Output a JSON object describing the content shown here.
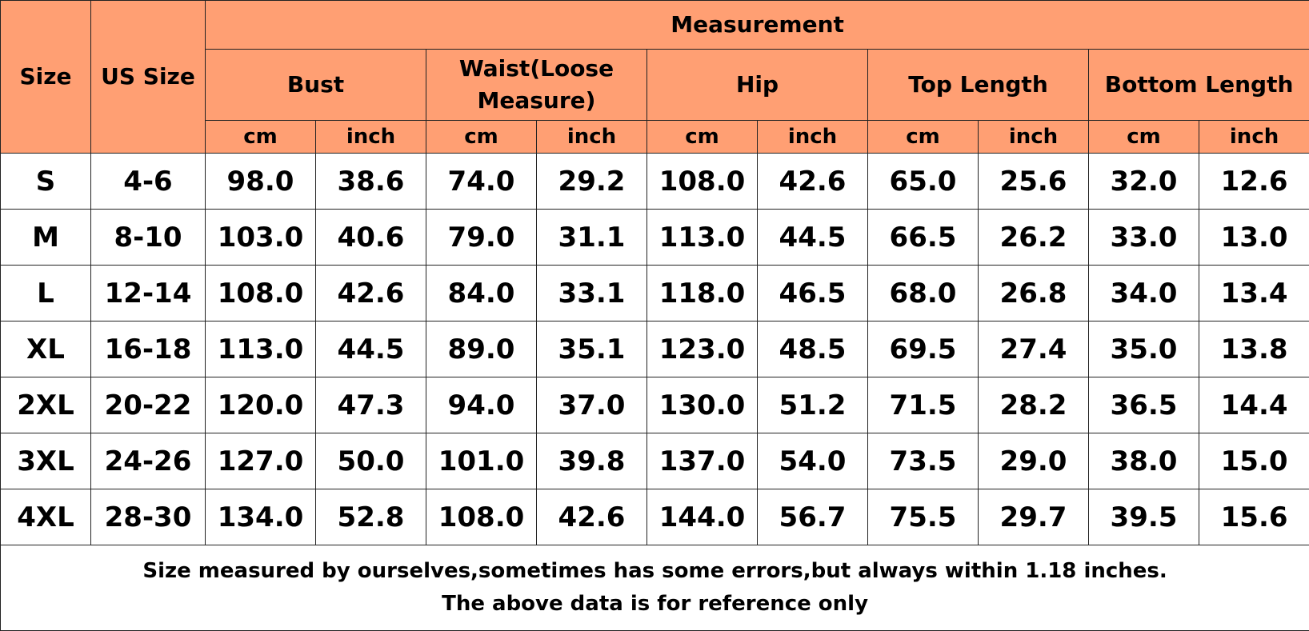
{
  "header": {
    "size": "Size",
    "us_size": "US Size",
    "measurement": "Measurement",
    "groups": [
      {
        "name": "Bust",
        "units": [
          "cm",
          "inch"
        ]
      },
      {
        "name": "Waist(Loose Measure)",
        "units": [
          "cm",
          "inch"
        ]
      },
      {
        "name": "Hip",
        "units": [
          "cm",
          "inch"
        ]
      },
      {
        "name": "Top Length",
        "units": [
          "cm",
          "inch"
        ]
      },
      {
        "name": "Bottom Length",
        "units": [
          "cm",
          "inch"
        ]
      }
    ]
  },
  "table": {
    "rows": [
      [
        "S",
        "4-6",
        "98.0",
        "38.6",
        "74.0",
        "29.2",
        "108.0",
        "42.6",
        "65.0",
        "25.6",
        "32.0",
        "12.6"
      ],
      [
        "M",
        "8-10",
        "103.0",
        "40.6",
        "79.0",
        "31.1",
        "113.0",
        "44.5",
        "66.5",
        "26.2",
        "33.0",
        "13.0"
      ],
      [
        "L",
        "12-14",
        "108.0",
        "42.6",
        "84.0",
        "33.1",
        "118.0",
        "46.5",
        "68.0",
        "26.8",
        "34.0",
        "13.4"
      ],
      [
        "XL",
        "16-18",
        "113.0",
        "44.5",
        "89.0",
        "35.1",
        "123.0",
        "48.5",
        "69.5",
        "27.4",
        "35.0",
        "13.8"
      ],
      [
        "2XL",
        "20-22",
        "120.0",
        "47.3",
        "94.0",
        "37.0",
        "130.0",
        "51.2",
        "71.5",
        "28.2",
        "36.5",
        "14.4"
      ],
      [
        "3XL",
        "24-26",
        "127.0",
        "50.0",
        "101.0",
        "39.8",
        "137.0",
        "54.0",
        "73.5",
        "29.0",
        "38.0",
        "15.0"
      ],
      [
        "4XL",
        "28-30",
        "134.0",
        "52.8",
        "108.0",
        "42.6",
        "144.0",
        "56.7",
        "75.5",
        "29.7",
        "39.5",
        "15.6"
      ]
    ]
  },
  "footer": {
    "notes": [
      "Size measured by ourselves,sometimes has some errors,but always within 1.18 inches.",
      "The above data is for reference only"
    ]
  }
}
